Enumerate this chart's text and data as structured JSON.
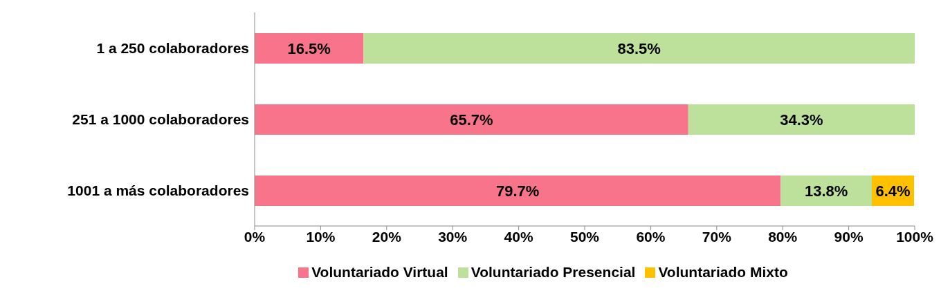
{
  "chart_data": {
    "type": "bar",
    "orientation": "horizontal",
    "stacked": true,
    "categories": [
      "1 a 250 colaboradores",
      "251 a 1000 colaboradores",
      "1001 a más colaboradores"
    ],
    "series": [
      {
        "name": "Voluntariado Virtual",
        "color": "#f7748a",
        "values": [
          16.5,
          65.7,
          79.7
        ],
        "value_labels": [
          "16.5%",
          "65.7%",
          "79.7%"
        ]
      },
      {
        "name": "Voluntariado Presencial",
        "color": "#bde19a",
        "values": [
          83.5,
          34.3,
          13.8
        ],
        "value_labels": [
          "83.5%",
          "34.3%",
          "13.8%"
        ]
      },
      {
        "name": "Voluntariado Mixto",
        "color": "#ffc000",
        "values": [
          null,
          null,
          6.4
        ],
        "value_labels": [
          null,
          null,
          "6.4%"
        ]
      }
    ],
    "xlim": [
      0,
      100
    ],
    "xticks": [
      {
        "value": 0,
        "label": "0%"
      },
      {
        "value": 10,
        "label": "10%"
      },
      {
        "value": 20,
        "label": "20%"
      },
      {
        "value": 30,
        "label": "30%"
      },
      {
        "value": 40,
        "label": "40%"
      },
      {
        "value": 50,
        "label": "50%"
      },
      {
        "value": 60,
        "label": "60%"
      },
      {
        "value": 70,
        "label": "70%"
      },
      {
        "value": 80,
        "label": "80%"
      },
      {
        "value": 90,
        "label": "90%"
      },
      {
        "value": 100,
        "label": "100%"
      }
    ],
    "legend": "bottom"
  }
}
